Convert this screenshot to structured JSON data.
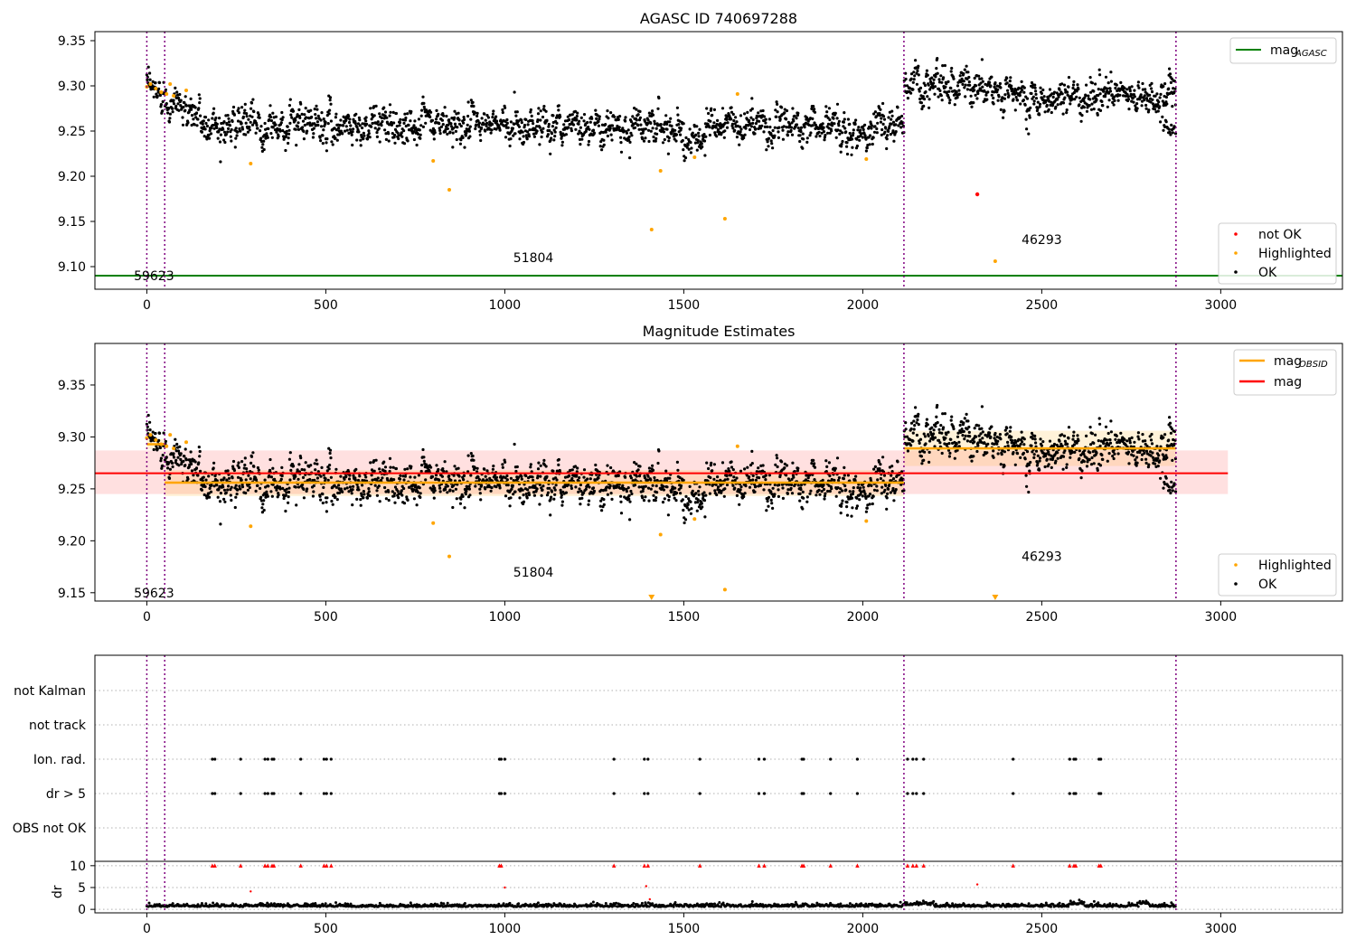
{
  "colors": {
    "ok": "#000000",
    "highlighted": "#ffa500",
    "not_ok": "#ff0000",
    "mag_agasc": "#008000",
    "mag_obsid": "#ffa500",
    "mag": "#ff0000",
    "obs_boundary": "#800080",
    "grid": "#b0b0b0"
  },
  "chart_data": [
    {
      "type": "scatter",
      "title": "AGASC ID 740697288",
      "xlim": [
        -145,
        3340
      ],
      "ylim": [
        9.075,
        9.36
      ],
      "x_ticks": [
        0,
        500,
        1000,
        1500,
        2000,
        2500,
        3000
      ],
      "y_ticks": [
        9.1,
        9.15,
        9.2,
        9.25,
        9.3,
        9.35
      ],
      "y_tick_labels": [
        "9.10",
        "9.15",
        "9.20",
        "9.25",
        "9.30",
        "9.35"
      ],
      "obs_boundaries": [
        0,
        50,
        2115,
        2875
      ],
      "obs_labels": [
        {
          "text": "59623",
          "x": 20,
          "y": 9.09
        },
        {
          "text": "51804",
          "x": 1080,
          "y": 9.11
        },
        {
          "text": "46293",
          "x": 2500,
          "y": 9.13
        }
      ],
      "mag_agasc": 9.09,
      "legend_top": [
        {
          "label": "mag",
          "sub": "AGASC",
          "color": "#008000"
        }
      ],
      "legend_bottom": [
        {
          "label": "not OK",
          "color": "#ff0000"
        },
        {
          "label": "Highlighted",
          "color": "#ffa500"
        },
        {
          "label": "OK",
          "color": "#000000"
        }
      ],
      "highlighted": [
        [
          0,
          9.299
        ],
        [
          10,
          9.302
        ],
        [
          25,
          9.297
        ],
        [
          40,
          9.293
        ],
        [
          55,
          9.291
        ],
        [
          65,
          9.302
        ],
        [
          75,
          9.289
        ],
        [
          110,
          9.295
        ],
        [
          290,
          9.214
        ],
        [
          800,
          9.217
        ],
        [
          845,
          9.185
        ],
        [
          1410,
          9.141
        ],
        [
          1435,
          9.206
        ],
        [
          1530,
          9.221
        ],
        [
          1615,
          9.153
        ],
        [
          1650,
          9.291
        ],
        [
          2010,
          9.219
        ],
        [
          2370,
          9.106
        ]
      ],
      "not_ok": [
        [
          2320,
          9.18
        ]
      ]
    },
    {
      "type": "scatter",
      "title": "Magnitude Estimates",
      "xlim": [
        -145,
        3340
      ],
      "ylim": [
        9.142,
        9.39
      ],
      "x_ticks": [
        0,
        500,
        1000,
        1500,
        2000,
        2500,
        3000
      ],
      "y_ticks": [
        9.15,
        9.2,
        9.25,
        9.3,
        9.35
      ],
      "y_tick_labels": [
        "9.15",
        "9.20",
        "9.25",
        "9.30",
        "9.35"
      ],
      "obs_boundaries": [
        0,
        50,
        2115,
        2875
      ],
      "obs_labels": [
        {
          "text": "59623",
          "x": 20,
          "y": 9.15
        },
        {
          "text": "51804",
          "x": 1080,
          "y": 9.17
        },
        {
          "text": "46293",
          "x": 2500,
          "y": 9.185
        }
      ],
      "mag": {
        "value": 9.265,
        "band": [
          9.245,
          9.287
        ],
        "x_range": [
          -145,
          3020
        ]
      },
      "mag_obsid": [
        {
          "x": [
            0,
            50
          ],
          "value": 9.293,
          "band": [
            9.288,
            9.298
          ]
        },
        {
          "x": [
            50,
            2115
          ],
          "value": 9.256,
          "band": [
            9.243,
            9.268
          ]
        },
        {
          "x": [
            2115,
            2875
          ],
          "value": 9.289,
          "band": [
            9.272,
            9.306
          ]
        }
      ],
      "legend_top": [
        {
          "label": "mag",
          "sub": "OBSID",
          "color": "#ffa500"
        },
        {
          "label": "mag",
          "sub": "",
          "color": "#ff0000"
        }
      ],
      "legend_bottom": [
        {
          "label": "Highlighted",
          "color": "#ffa500"
        },
        {
          "label": "OK",
          "color": "#000000"
        }
      ],
      "highlighted": [
        [
          0,
          9.299
        ],
        [
          10,
          9.302
        ],
        [
          25,
          9.297
        ],
        [
          40,
          9.293
        ],
        [
          55,
          9.291
        ],
        [
          65,
          9.302
        ],
        [
          75,
          9.289
        ],
        [
          110,
          9.295
        ],
        [
          290,
          9.214
        ],
        [
          800,
          9.217
        ],
        [
          845,
          9.185
        ],
        [
          1435,
          9.206
        ],
        [
          1530,
          9.221
        ],
        [
          1615,
          9.153
        ],
        [
          1650,
          9.291
        ],
        [
          2010,
          9.219
        ]
      ],
      "highlighted_clipped": [
        1410,
        2370
      ]
    },
    {
      "type": "scatter",
      "title": "",
      "xlim": [
        -145,
        3340
      ],
      "flag_labels": [
        "not Kalman",
        "not track",
        "Ion. rad.",
        "dr > 5",
        "OBS not OK"
      ],
      "flag_points": [
        183,
        190,
        262,
        330,
        338,
        350,
        355,
        430,
        495,
        502,
        515,
        985,
        990,
        1000,
        1305,
        1390,
        1400,
        1545,
        1710,
        1725,
        1830,
        1835,
        1910,
        1985,
        2125,
        2140,
        2150,
        2170,
        2420,
        2578,
        2590,
        2595,
        2660,
        2665
      ],
      "dr": {
        "y_ticks": [
          0,
          5,
          10
        ],
        "ylabel": "dr",
        "ylim": [
          -0.8,
          11
        ],
        "clipped_at": 10,
        "clipped_x": [
          183,
          190,
          262,
          330,
          338,
          350,
          355,
          430,
          495,
          502,
          515,
          985,
          990,
          1305,
          1390,
          1400,
          1545,
          1710,
          1725,
          1830,
          1835,
          1910,
          1985,
          2125,
          2140,
          2150,
          2170,
          2420,
          2578,
          2590,
          2595,
          2660,
          2665
        ],
        "outliers": [
          [
            290,
            4.1
          ],
          [
            1000,
            5.0
          ],
          [
            1395,
            5.3
          ],
          [
            1405,
            2.3
          ],
          [
            2320,
            5.7
          ]
        ]
      },
      "x_ticks": [
        0,
        500,
        1000,
        1500,
        2000,
        2500,
        3000
      ]
    }
  ]
}
